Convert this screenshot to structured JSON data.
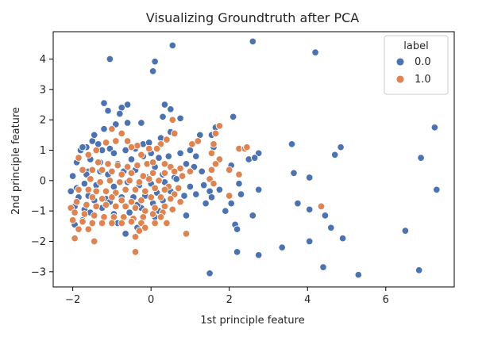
{
  "chart_data": {
    "type": "scatter",
    "title": "Visualizing Groundtruth after PCA",
    "xlabel": "1st principle feature",
    "ylabel": "2nd principle feature",
    "xlim": [
      -2.5,
      7.75
    ],
    "ylim": [
      -3.5,
      4.9
    ],
    "xticks": [
      -2,
      0,
      2,
      4,
      6
    ],
    "xtick_labels": [
      "−2",
      "0",
      "2",
      "4",
      "6"
    ],
    "yticks": [
      -3,
      -2,
      -1,
      0,
      1,
      2,
      3,
      4
    ],
    "ytick_labels": [
      "−3",
      "−2",
      "−1",
      "0",
      "1",
      "2",
      "3",
      "4"
    ],
    "grid": false,
    "legend": {
      "title": "label",
      "placement": "top-right"
    },
    "series": [
      {
        "name": "0.0",
        "color": "#4c72b0",
        "points": [
          [
            0.55,
            4.45
          ],
          [
            2.6,
            4.58
          ],
          [
            -1.05,
            4.0
          ],
          [
            0.1,
            3.92
          ],
          [
            0.05,
            3.6
          ],
          [
            4.2,
            4.22
          ],
          [
            -1.2,
            2.55
          ],
          [
            -0.6,
            2.5
          ],
          [
            0.35,
            2.5
          ],
          [
            0.5,
            2.35
          ],
          [
            -0.75,
            2.4
          ],
          [
            -0.8,
            2.2
          ],
          [
            -1.1,
            2.3
          ],
          [
            -0.25,
            1.9
          ],
          [
            -0.6,
            1.9
          ],
          [
            -0.9,
            1.85
          ],
          [
            -1.2,
            1.7
          ],
          [
            0.3,
            2.1
          ],
          [
            0.75,
            2.05
          ],
          [
            1.65,
            1.75
          ],
          [
            2.1,
            2.1
          ],
          [
            1.55,
            1.5
          ],
          [
            -1.65,
            1.1
          ],
          [
            -1.5,
            1.3
          ],
          [
            -1.25,
            1.0
          ],
          [
            -1.45,
            1.5
          ],
          [
            -1.8,
            1.0
          ],
          [
            -1.75,
            1.1
          ],
          [
            -1.35,
            1.2
          ],
          [
            -1.05,
            1.05
          ],
          [
            -0.95,
            0.9
          ],
          [
            -0.65,
            1.0
          ],
          [
            -0.4,
            1.05
          ],
          [
            -0.2,
            1.2
          ],
          [
            -0.05,
            1.25
          ],
          [
            0.25,
            1.4
          ],
          [
            0.5,
            1.6
          ],
          [
            -1.55,
            0.7
          ],
          [
            -1.3,
            0.6
          ],
          [
            -0.85,
            0.55
          ],
          [
            -0.5,
            0.7
          ],
          [
            -0.2,
            0.8
          ],
          [
            0.0,
            0.9
          ],
          [
            0.2,
            0.75
          ],
          [
            0.45,
            0.8
          ],
          [
            0.75,
            0.9
          ],
          [
            1.0,
            1.0
          ],
          [
            1.15,
            0.8
          ],
          [
            1.6,
            1.1
          ],
          [
            -1.9,
            0.6
          ],
          [
            -1.6,
            0.3
          ],
          [
            -1.3,
            0.3
          ],
          [
            -1.1,
            0.2
          ],
          [
            -0.7,
            0.3
          ],
          [
            -0.4,
            0.35
          ],
          [
            0.1,
            0.45
          ],
          [
            0.3,
            0.2
          ],
          [
            0.6,
            0.1
          ],
          [
            1.1,
            0.45
          ],
          [
            1.3,
            0.3
          ],
          [
            -2.0,
            0.15
          ],
          [
            -1.65,
            0.2
          ],
          [
            -1.9,
            -0.25
          ],
          [
            -1.7,
            -0.1
          ],
          [
            -1.4,
            -0.15
          ],
          [
            -0.95,
            -0.2
          ],
          [
            -0.6,
            -0.05
          ],
          [
            -0.3,
            -0.15
          ],
          [
            0.0,
            -0.1
          ],
          [
            0.35,
            -0.05
          ],
          [
            0.65,
            0.05
          ],
          [
            1.0,
            -0.2
          ],
          [
            1.35,
            -0.15
          ],
          [
            1.5,
            -0.35
          ],
          [
            1.75,
            -0.3
          ],
          [
            2.05,
            0.5
          ],
          [
            2.25,
            -0.1
          ],
          [
            2.5,
            0.7
          ],
          [
            2.75,
            0.9
          ],
          [
            2.65,
            0.75
          ],
          [
            3.6,
            1.2
          ],
          [
            3.65,
            0.25
          ],
          [
            4.05,
            0.1
          ],
          [
            4.7,
            0.85
          ],
          [
            4.85,
            1.1
          ],
          [
            6.9,
            0.75
          ],
          [
            7.25,
            1.75
          ],
          [
            7.3,
            -0.3
          ],
          [
            -2.05,
            -0.35
          ],
          [
            -1.85,
            -0.55
          ],
          [
            -1.45,
            -0.65
          ],
          [
            -1.15,
            -0.6
          ],
          [
            -0.75,
            -0.55
          ],
          [
            -0.45,
            -0.55
          ],
          [
            -0.15,
            -0.5
          ],
          [
            0.15,
            -0.4
          ],
          [
            0.5,
            -0.35
          ],
          [
            0.85,
            -0.5
          ],
          [
            1.15,
            -0.45
          ],
          [
            1.55,
            -0.55
          ],
          [
            2.3,
            -0.45
          ],
          [
            2.75,
            -0.3
          ],
          [
            -1.95,
            -0.85
          ],
          [
            -1.7,
            -0.95
          ],
          [
            -1.55,
            -1.05
          ],
          [
            -1.25,
            -0.9
          ],
          [
            -0.95,
            -1.1
          ],
          [
            -0.55,
            -1.05
          ],
          [
            -0.25,
            -0.9
          ],
          [
            0.05,
            -0.75
          ],
          [
            0.3,
            -0.65
          ],
          [
            0.9,
            -1.15
          ],
          [
            1.4,
            -0.75
          ],
          [
            2.05,
            -0.75
          ],
          [
            2.6,
            -1.15
          ],
          [
            2.15,
            -1.45
          ],
          [
            1.9,
            -1.0
          ],
          [
            3.75,
            -0.75
          ],
          [
            4.05,
            -0.95
          ],
          [
            4.45,
            -1.15
          ],
          [
            4.6,
            -1.55
          ],
          [
            4.9,
            -1.9
          ],
          [
            4.05,
            -2.0
          ],
          [
            3.35,
            -2.2
          ],
          [
            2.75,
            -2.45
          ],
          [
            2.2,
            -1.6
          ],
          [
            2.2,
            -2.35
          ],
          [
            1.5,
            -3.05
          ],
          [
            4.4,
            -2.85
          ],
          [
            5.3,
            -3.1
          ],
          [
            6.5,
            -1.65
          ],
          [
            6.85,
            -2.95
          ],
          [
            -0.35,
            -1.55
          ],
          [
            -0.65,
            -1.75
          ],
          [
            -1.75,
            -1.3
          ],
          [
            -1.95,
            -1.45
          ],
          [
            0.1,
            -1.2
          ],
          [
            0.2,
            -1.0
          ],
          [
            -0.85,
            -1.4
          ],
          [
            -1.05,
            -0.7
          ],
          [
            -0.35,
            -0.8
          ],
          [
            -1.6,
            -0.5
          ],
          [
            -0.1,
            0.1
          ],
          [
            0.9,
            0.55
          ],
          [
            1.25,
            1.5
          ]
        ]
      },
      {
        "name": "1.0",
        "color": "#dd8452",
        "points": [
          [
            1.75,
            1.8
          ],
          [
            1.65,
            1.55
          ],
          [
            1.6,
            1.2
          ],
          [
            1.55,
            0.9
          ],
          [
            2.25,
            1.05
          ],
          [
            2.4,
            1.05
          ],
          [
            2.45,
            1.1
          ],
          [
            1.75,
            0.7
          ],
          [
            1.65,
            0.55
          ],
          [
            2.0,
            0.35
          ],
          [
            2.25,
            0.2
          ],
          [
            1.55,
            0.35
          ],
          [
            1.5,
            0.05
          ],
          [
            1.6,
            -0.1
          ],
          [
            2.0,
            -0.5
          ],
          [
            1.05,
            1.2
          ],
          [
            1.2,
            1.3
          ],
          [
            0.55,
            2.0
          ],
          [
            0.6,
            1.55
          ],
          [
            0.4,
            1.35
          ],
          [
            0.25,
            1.2
          ],
          [
            0.15,
            1.05
          ],
          [
            -0.05,
            1.05
          ],
          [
            -0.35,
            1.15
          ],
          [
            -0.6,
            1.3
          ],
          [
            -0.9,
            1.3
          ],
          [
            -1.15,
            1.25
          ],
          [
            -1.4,
            1.0
          ],
          [
            -1.6,
            0.85
          ],
          [
            -1.85,
            0.75
          ],
          [
            -1.35,
            0.6
          ],
          [
            -1.1,
            0.55
          ],
          [
            -0.85,
            0.5
          ],
          [
            -0.6,
            0.45
          ],
          [
            -0.35,
            0.5
          ],
          [
            -0.1,
            0.55
          ],
          [
            0.05,
            0.6
          ],
          [
            0.35,
            0.55
          ],
          [
            0.5,
            0.45
          ],
          [
            0.75,
            0.4
          ],
          [
            1.0,
            0.3
          ],
          [
            -1.5,
            0.35
          ],
          [
            -1.25,
            0.35
          ],
          [
            -1.0,
            0.3
          ],
          [
            -0.75,
            0.2
          ],
          [
            -0.5,
            0.25
          ],
          [
            -0.2,
            0.15
          ],
          [
            0.05,
            0.25
          ],
          [
            0.35,
            0.25
          ],
          [
            0.6,
            0.3
          ],
          [
            0.8,
            0.15
          ],
          [
            -1.75,
            0.35
          ],
          [
            -1.55,
            0.05
          ],
          [
            -1.3,
            -0.05
          ],
          [
            -1.05,
            0.0
          ],
          [
            -0.8,
            -0.05
          ],
          [
            -0.55,
            0.0
          ],
          [
            -0.3,
            -0.05
          ],
          [
            -0.05,
            0.05
          ],
          [
            0.2,
            0.0
          ],
          [
            0.45,
            -0.2
          ],
          [
            0.7,
            -0.25
          ],
          [
            -1.6,
            -0.3
          ],
          [
            -1.4,
            -0.35
          ],
          [
            -1.15,
            -0.35
          ],
          [
            -0.9,
            -0.4
          ],
          [
            -0.65,
            -0.3
          ],
          [
            -0.4,
            -0.3
          ],
          [
            -0.15,
            -0.35
          ],
          [
            0.1,
            -0.25
          ],
          [
            0.35,
            -0.3
          ],
          [
            0.6,
            -0.45
          ],
          [
            -1.85,
            -0.3
          ],
          [
            -1.5,
            -0.55
          ],
          [
            -1.25,
            -0.6
          ],
          [
            -1.0,
            -0.55
          ],
          [
            -0.75,
            -0.65
          ],
          [
            -0.5,
            -0.7
          ],
          [
            -0.25,
            -0.65
          ],
          [
            0.0,
            -0.55
          ],
          [
            0.25,
            -0.55
          ],
          [
            0.5,
            -0.6
          ],
          [
            0.75,
            -0.7
          ],
          [
            -2.05,
            -0.9
          ],
          [
            -1.9,
            -0.7
          ],
          [
            -1.65,
            -0.8
          ],
          [
            -1.4,
            -0.85
          ],
          [
            -1.15,
            -0.8
          ],
          [
            -0.9,
            -0.85
          ],
          [
            -0.65,
            -0.85
          ],
          [
            -0.4,
            -0.9
          ],
          [
            -0.15,
            -1.0
          ],
          [
            0.1,
            -0.9
          ],
          [
            0.35,
            -0.85
          ],
          [
            -1.95,
            -1.05
          ],
          [
            -1.7,
            -1.1
          ],
          [
            -1.45,
            -1.15
          ],
          [
            -1.2,
            -1.2
          ],
          [
            -0.95,
            -1.2
          ],
          [
            -0.7,
            -1.2
          ],
          [
            -0.45,
            -1.25
          ],
          [
            -0.2,
            -1.2
          ],
          [
            0.05,
            -1.1
          ],
          [
            0.3,
            -1.05
          ],
          [
            0.55,
            -0.95
          ],
          [
            -2.0,
            -1.3
          ],
          [
            -1.75,
            -1.35
          ],
          [
            -1.5,
            -1.4
          ],
          [
            -1.25,
            -1.4
          ],
          [
            -1.0,
            -1.4
          ],
          [
            -0.75,
            -1.4
          ],
          [
            -0.5,
            -1.35
          ],
          [
            -0.25,
            -1.4
          ],
          [
            0.25,
            -1.2
          ],
          [
            -1.85,
            -1.6
          ],
          [
            -1.6,
            -1.6
          ],
          [
            -1.95,
            -1.9
          ],
          [
            -1.45,
            -2.0
          ],
          [
            -0.4,
            -1.85
          ],
          [
            -0.4,
            -2.35
          ],
          [
            0.9,
            -1.75
          ],
          [
            4.35,
            -0.85
          ],
          [
            -0.3,
            -1.65
          ],
          [
            -0.15,
            -1.55
          ],
          [
            0.1,
            -1.4
          ],
          [
            0.4,
            -1.4
          ],
          [
            -1.0,
            1.7
          ],
          [
            -0.75,
            1.55
          ],
          [
            -0.5,
            1.1
          ],
          [
            -0.25,
            0.85
          ]
        ]
      }
    ]
  }
}
